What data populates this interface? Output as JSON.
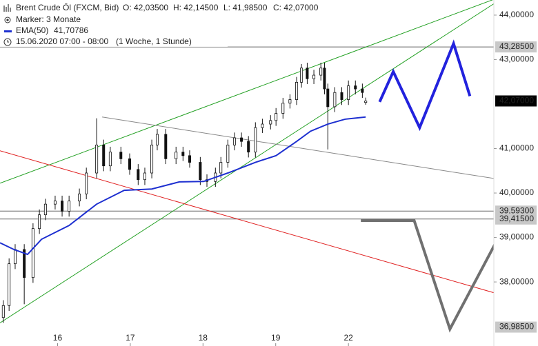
{
  "chart_data": {
    "type": "candlestick",
    "title": "Brent Crude Öl (FXCM, Bid)",
    "ohlc_labels": [
      "O: 42,03500",
      "H: 42,14500",
      "L: 41,98500",
      "C: 42,07000"
    ],
    "marker": "Marker: 3 Monate",
    "period": "15.06.2020 07:00 - 08:00",
    "interval": "(1 Woche, 1 Stunde)",
    "x": [
      1.1,
      3,
      5,
      8,
      10.9,
      13,
      15,
      18.2,
      20.5,
      22.8,
      26.2,
      28.5,
      31.9,
      34.2,
      36.4,
      39.9,
      42.8,
      45.6,
      47.8,
      50.1,
      51.9,
      54.7,
      58.1,
      60.4,
      62.6,
      66.1,
      68.3,
      71.1,
      72.9,
      75.2,
      77.4,
      79.7,
      82,
      84.3,
      86.6,
      89.3,
      91.1,
      93.4,
      95.7,
      97.9,
      99.5,
      101.4,
      103.6,
      105.9,
      107.1,
      108.2,
      110.5,
      112.8,
      115,
      117.3,
      119.6,
      120.7
    ],
    "open": [
      37.2,
      37.47,
      38.41,
      38.73,
      38.1,
      39.2,
      39.51,
      39.75,
      39.82,
      39.59,
      39.82,
      39.98,
      40.45,
      41.08,
      40.61,
      40.92,
      40.77,
      40.53,
      40.3,
      40.45,
      41.08,
      41.32,
      40.77,
      40.92,
      40.84,
      40.69,
      40.3,
      40.26,
      40.45,
      40.69,
      41.08,
      41.24,
      41.16,
      40.92,
      41.47,
      41.55,
      41.63,
      41.79,
      42.02,
      42.1,
      42.49,
      42.81,
      42.57,
      42.65,
      42.81,
      42.34,
      41.94,
      42.26,
      42.1,
      42.41,
      42.34,
      42.035
    ],
    "high": [
      37.59,
      38.53,
      38.85,
      38.85,
      39.32,
      39.63,
      39.87,
      39.94,
      39.94,
      39.94,
      40.1,
      40.57,
      41.68,
      41.2,
      41.04,
      41.04,
      40.89,
      40.65,
      40.57,
      41.2,
      41.44,
      41.44,
      41.04,
      41.04,
      40.96,
      40.81,
      40.42,
      40.57,
      40.81,
      41.2,
      41.36,
      41.36,
      41.28,
      41.59,
      41.67,
      41.75,
      41.91,
      42.14,
      42.22,
      42.61,
      42.9,
      42.93,
      42.77,
      42.93,
      42.93,
      42.46,
      42.38,
      42.38,
      42.53,
      42.53,
      42.46,
      42.145
    ],
    "low": [
      37.08,
      37.35,
      38.29,
      37.5,
      37.98,
      39.08,
      39.39,
      39.63,
      39.47,
      39.47,
      39.7,
      39.86,
      40.33,
      40.49,
      40.49,
      40.65,
      40.41,
      40.18,
      40.18,
      40.33,
      40.96,
      40.65,
      40.65,
      40.72,
      40.57,
      40.18,
      40.14,
      40.14,
      40.33,
      40.57,
      40.96,
      41.04,
      40.8,
      40.8,
      41.35,
      41.43,
      41.51,
      41.67,
      41.9,
      41.98,
      42.37,
      42.45,
      42.45,
      42.53,
      42.22,
      40.98,
      41.82,
      41.98,
      41.98,
      42.22,
      42.14,
      41.985
    ],
    "close": [
      37.47,
      38.41,
      38.73,
      38.1,
      39.2,
      39.51,
      39.75,
      39.82,
      39.59,
      39.82,
      39.98,
      40.45,
      41.08,
      40.61,
      40.92,
      40.77,
      40.53,
      40.3,
      40.45,
      41.08,
      41.32,
      40.77,
      40.92,
      40.84,
      40.69,
      40.3,
      40.26,
      40.45,
      40.69,
      41.08,
      41.24,
      41.16,
      40.92,
      41.47,
      41.55,
      41.63,
      41.79,
      42.02,
      42.1,
      42.49,
      42.81,
      42.57,
      42.65,
      42.81,
      42.34,
      41.94,
      42.26,
      42.1,
      42.41,
      42.34,
      42.26,
      42.07
    ],
    "series": [
      {
        "name": "EMA(50)",
        "value_label": "41,70786",
        "color": "#1d2fd0",
        "x": [
          0,
          4.6,
          9.1,
          13.7,
          22.8,
          31.9,
          41,
          50.1,
          59.2,
          67.2,
          75.2,
          84.3,
          91.1,
          97.9,
          102.5,
          108.2,
          113.9,
          120.7
        ],
        "values": [
          38.88,
          38.73,
          38.62,
          38.96,
          39.27,
          39.75,
          40.06,
          40.09,
          40.25,
          40.26,
          40.45,
          40.69,
          40.84,
          41.16,
          41.39,
          41.55,
          41.66,
          41.71
        ]
      }
    ],
    "drawings": [
      {
        "color": "#22a022",
        "width": 1,
        "x": [
          0,
          164
        ],
        "values": [
          40.22,
          44.38
        ]
      },
      {
        "color": "#22a022",
        "width": 1,
        "x": [
          0,
          164
        ],
        "values": [
          37.08,
          44.3
        ]
      },
      {
        "color": "#888888",
        "width": 1,
        "x": [
          33.7,
          177.7
        ],
        "values": [
          41.71,
          40.17
        ]
      },
      {
        "color": "#e02020",
        "width": 1,
        "x": [
          0,
          177.7
        ],
        "values": [
          40.95,
          37.47
        ]
      },
      {
        "color": "#2222dd",
        "width": 4,
        "x": [
          125.3,
          129.8,
          138.5,
          149.7,
          155.1
        ],
        "values": [
          42.05,
          42.73,
          41.47,
          43.36,
          42.18
        ]
      },
      {
        "color": "#707070",
        "width": 4,
        "x": [
          119.1,
          136.7,
          148.5,
          163.6
        ],
        "values": [
          39.38,
          39.38,
          36.94,
          38.88
        ]
      }
    ],
    "price_lines": [
      {
        "value": 43.285,
        "label": "43,28500",
        "color": "#c8c8c8",
        "line": true
      },
      {
        "value": 42.07,
        "label": "42,07000",
        "color": "#000000",
        "line": false
      },
      {
        "value": 39.593,
        "label": "39,59300",
        "color": "#c8c8c8",
        "line": true
      },
      {
        "value": 39.415,
        "label": "39,41500",
        "color": "#c8c8c8",
        "line": true
      },
      {
        "value": 36.985,
        "label": "36,98500",
        "color": "#c8c8c8",
        "line": false
      }
    ],
    "xlim": [
      0,
      163
    ],
    "xticks": [
      {
        "value": 19,
        "label": "16"
      },
      {
        "value": 43,
        "label": "17"
      },
      {
        "value": 67,
        "label": "18"
      },
      {
        "value": 91,
        "label": "19"
      },
      {
        "value": 115,
        "label": "22"
      }
    ],
    "ylim": [
      36.56,
      44.34
    ],
    "yticks": [
      {
        "value": 44,
        "label": "44,00000"
      },
      {
        "value": 43,
        "label": "43,00000"
      },
      {
        "value": 41,
        "label": "41,00000"
      },
      {
        "value": 40,
        "label": "40,00000"
      },
      {
        "value": 39,
        "label": "39,00000"
      },
      {
        "value": 38,
        "label": "38,00000"
      }
    ]
  }
}
